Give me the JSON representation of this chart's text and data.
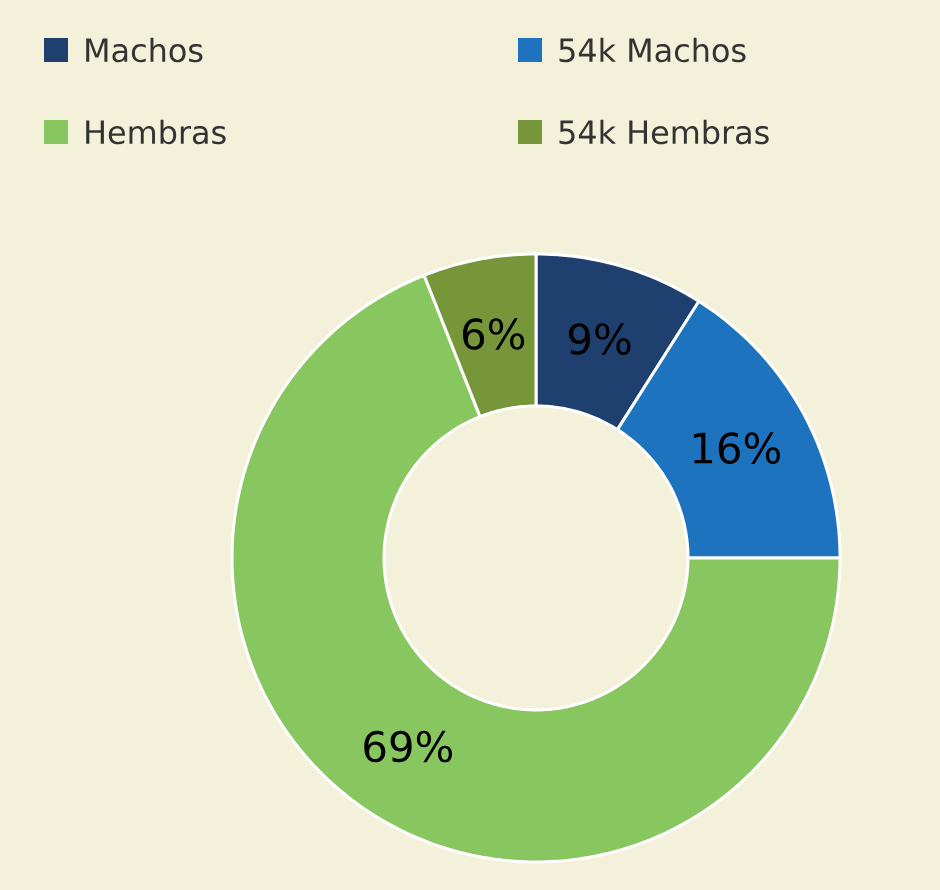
{
  "chart_data": {
    "type": "donut",
    "categories": [
      "Machos",
      "54k Machos",
      "Hembras",
      "54k Hembras"
    ],
    "values": [
      9,
      16,
      69,
      6
    ],
    "colors": [
      "#1f3f6e",
      "#1e73be",
      "#88c65f",
      "#77963a"
    ],
    "value_labels": [
      "9%",
      "16%",
      "69%",
      "6%"
    ],
    "legend": "top"
  }
}
